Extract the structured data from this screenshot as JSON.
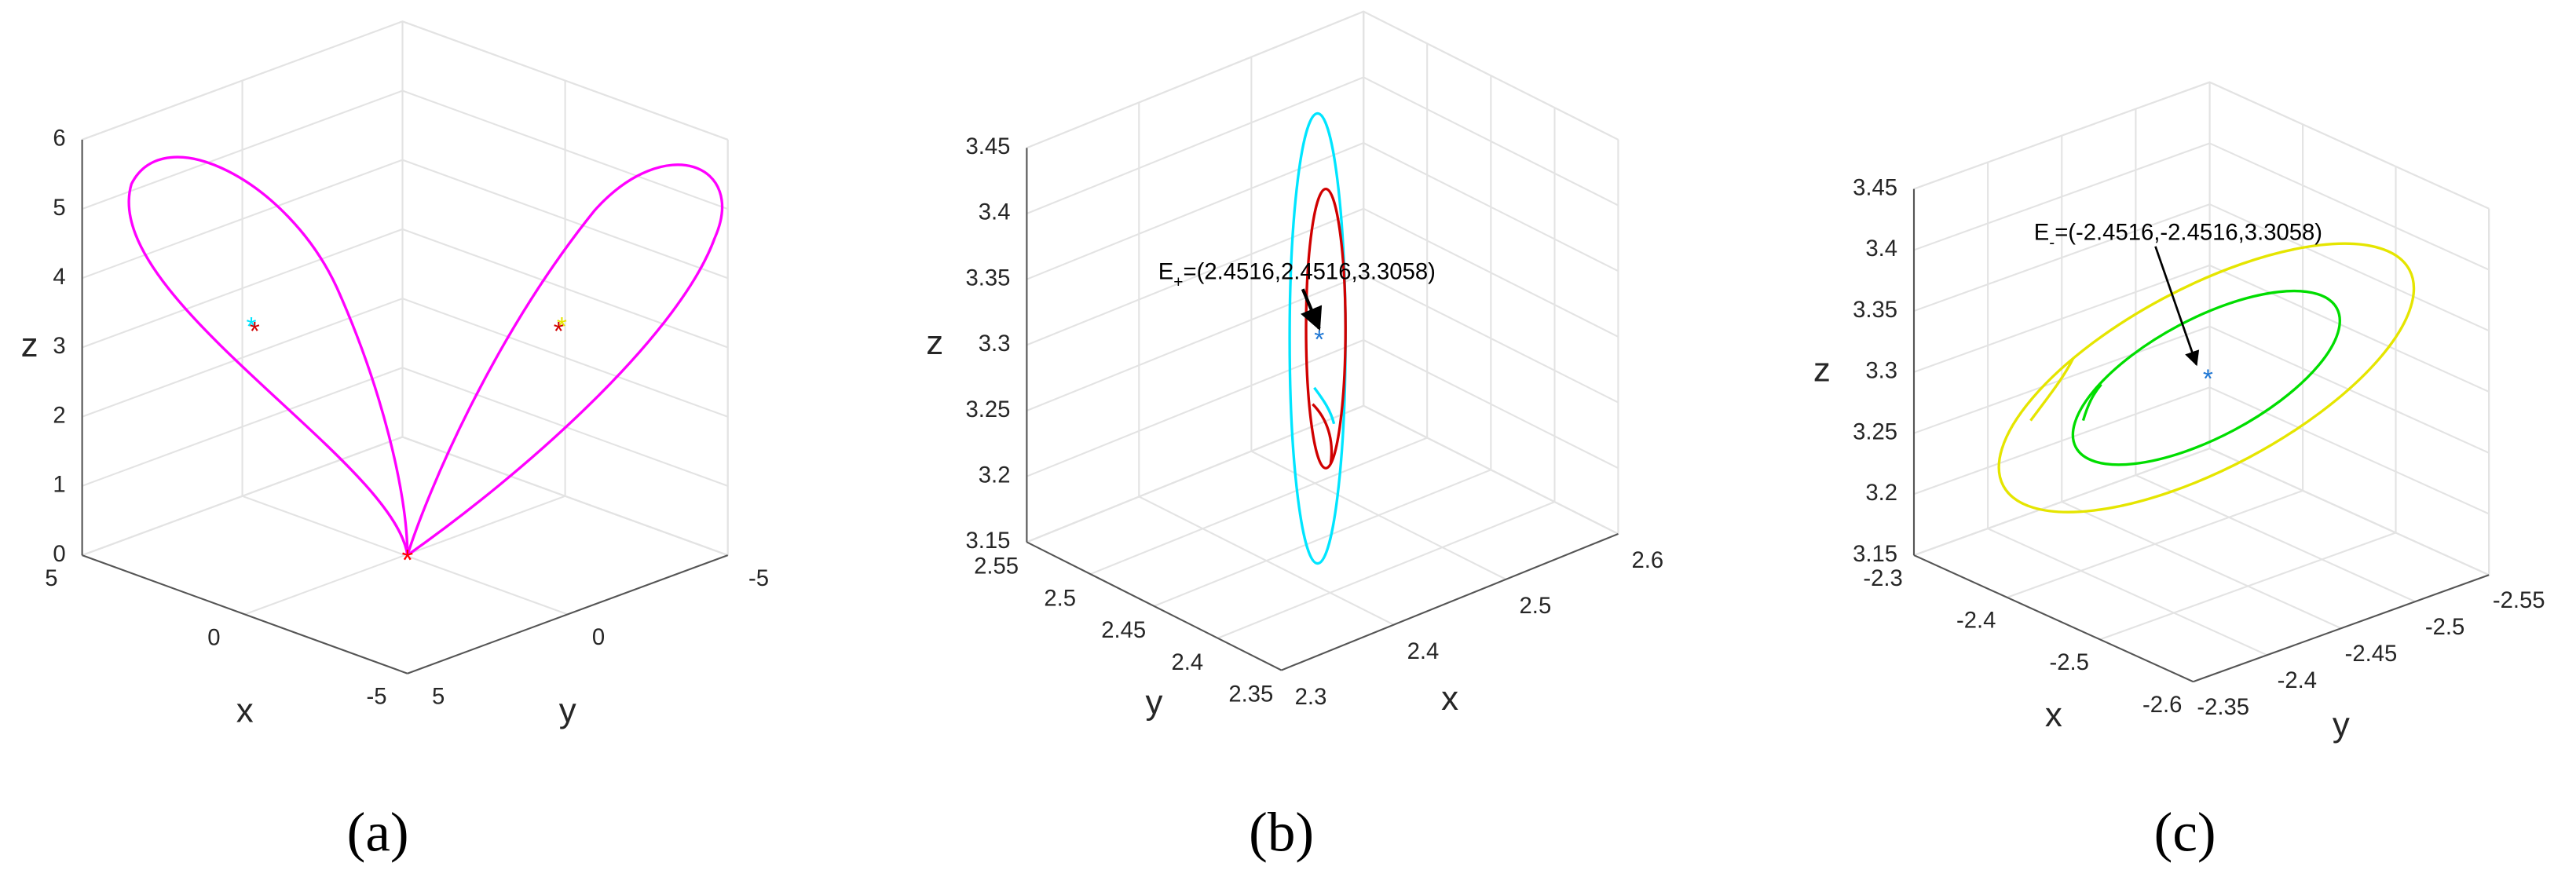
{
  "chart_data": [
    {
      "type": "line3d",
      "caption": "(a)",
      "xlabel": "x",
      "ylabel": "y",
      "zlabel": "z",
      "xlim": [
        -5,
        5
      ],
      "ylim": [
        -5,
        5
      ],
      "zlim": [
        0,
        6
      ],
      "xticks": [
        -5,
        0,
        5
      ],
      "yticks": [
        -5,
        0,
        5
      ],
      "zticks": [
        0,
        1,
        2,
        3,
        4,
        5,
        6
      ],
      "grid": true
    },
    {
      "type": "line3d",
      "caption": "(b)",
      "xlabel": "x",
      "ylabel": "y",
      "zlabel": "z",
      "xlim": [
        2.3,
        2.6
      ],
      "ylim": [
        2.35,
        2.55
      ],
      "zlim": [
        3.15,
        3.45
      ],
      "xticks": [
        2.3,
        2.4,
        2.5,
        2.6
      ],
      "yticks": [
        2.35,
        2.4,
        2.45,
        2.5,
        2.55
      ],
      "zticks": [
        3.15,
        3.2,
        3.25,
        3.3,
        3.35,
        3.4,
        3.45
      ],
      "grid": true,
      "annotation": {
        "base": "E",
        "sub": "+",
        "text": "=(2.4516,2.4516,3.3058)"
      }
    },
    {
      "type": "line3d",
      "caption": "(c)",
      "xlabel": "x",
      "ylabel": "y",
      "zlabel": "z",
      "xlim": [
        -2.6,
        -2.3
      ],
      "ylim": [
        -2.55,
        -2.35
      ],
      "zlim": [
        3.15,
        3.45
      ],
      "xticks": [
        -2.6,
        -2.5,
        -2.4,
        -2.3
      ],
      "yticks": [
        -2.55,
        -2.5,
        -2.45,
        -2.4,
        -2.35
      ],
      "zticks": [
        3.15,
        3.2,
        3.25,
        3.3,
        3.35,
        3.4,
        3.45
      ],
      "grid": true,
      "annotation": {
        "base": "E",
        "sub": "-",
        "text": "=(-2.4516,-2.4516,3.3058)"
      }
    }
  ]
}
